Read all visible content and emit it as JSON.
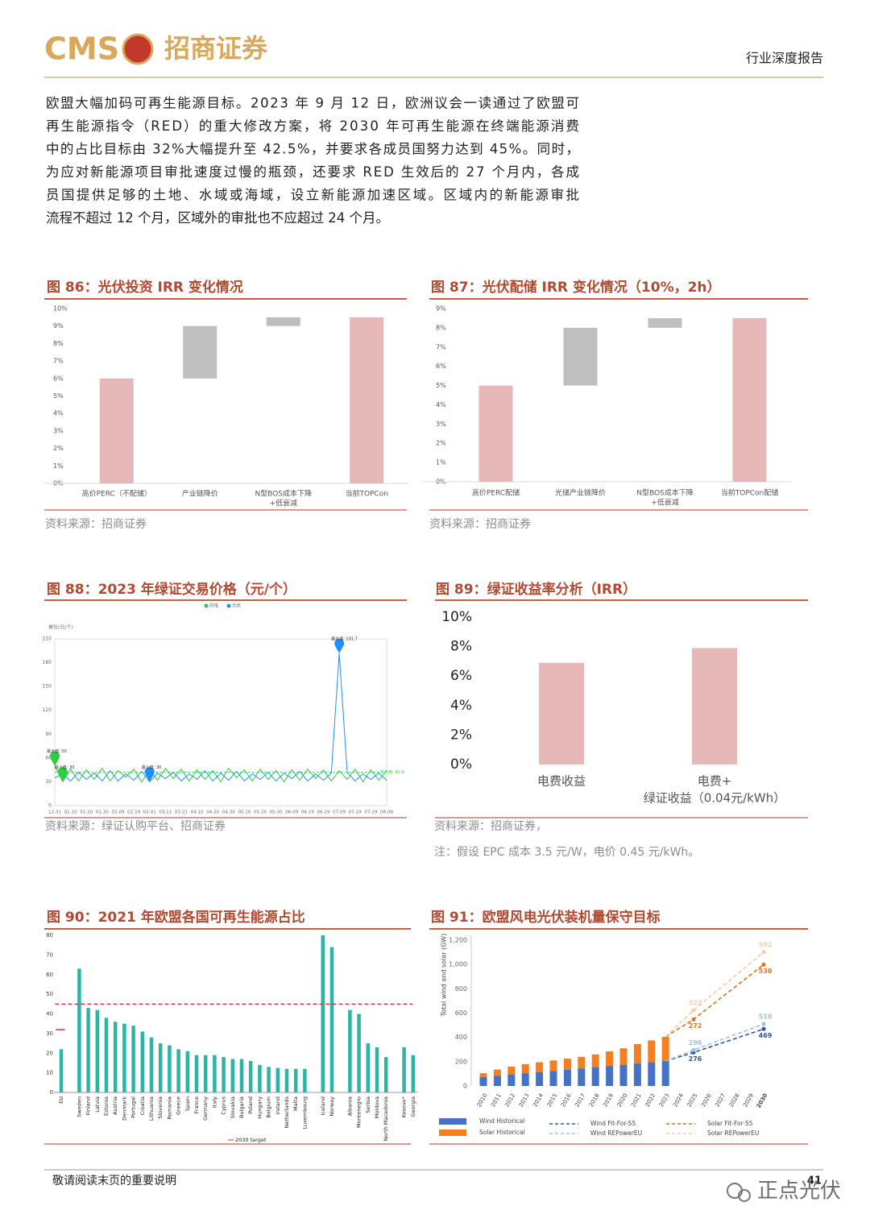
{
  "header": {
    "logo_en": "CMS",
    "logo_cn": "招商证券",
    "report_type": "行业深度报告"
  },
  "paragraph": [
    "欧盟大幅加码可再生能源目标。2023 年 9 月 12 日，欧洲议会一读通过了欧盟可",
    "再生能源指令（RED）的重大修改方案，将 2030 年可再生能源在终端能源消费",
    "中的占比目标由 32%大幅提升至 42.5%，并要求各成员国努力达到 45%。同时，",
    "为应对新能源项目审批速度过慢的瓶颈，还要求 RED 生效后的 27 个月内，各成",
    "员国提供足够的土地、水域或海域，设立新能源加速区域。区域内的新能源审批",
    "流程不超过 12 个月，区域外的审批也不应超过 24 个月。"
  ],
  "chart_data": [
    {
      "type": "waterfall",
      "title": "图 86：光伏投资 IRR 变化情况",
      "source": "资料来源：招商证券",
      "categories": [
        [
          "高价PERC（不配储）"
        ],
        [
          "产业链降价"
        ],
        [
          "N型BOS成本下降",
          "+低衰减"
        ],
        [
          "当前TOPCon"
        ]
      ],
      "values": [
        6.0,
        3.0,
        0.5,
        9.5
      ],
      "colors": [
        "#e6b8b7",
        "#bfbfbf",
        "#bfbfbf",
        "#e6b8b7"
      ],
      "ylim": [
        0,
        10
      ],
      "yticks": [
        {
          "value": 0,
          "label": "0%"
        },
        {
          "value": 1,
          "label": "1%"
        },
        {
          "value": 2,
          "label": "2%"
        },
        {
          "value": 3,
          "label": "3%"
        },
        {
          "value": 4,
          "label": "4%"
        },
        {
          "value": 5,
          "label": "5%"
        },
        {
          "value": 6,
          "label": "6%"
        },
        {
          "value": 7,
          "label": "7%"
        },
        {
          "value": 8,
          "label": "8%"
        },
        {
          "value": 9,
          "label": "9%"
        },
        {
          "value": 10,
          "label": "10%"
        }
      ]
    },
    {
      "type": "waterfall",
      "title": "图 87：光伏配储 IRR 变化情况（10%，2h）",
      "source": "资料来源：招商证券",
      "categories": [
        [
          "高价PERC配储"
        ],
        [
          "光储产业链降价"
        ],
        [
          "N型BOS成本下降",
          "+低衰减"
        ],
        [
          "当前TOPCon配储"
        ]
      ],
      "values": [
        5.0,
        3.0,
        0.5,
        8.5
      ],
      "colors": [
        "#e6b8b7",
        "#bfbfbf",
        "#bfbfbf",
        "#e6b8b7"
      ],
      "ylim": [
        0,
        9
      ],
      "yticks": [
        {
          "value": 0,
          "label": "0%"
        },
        {
          "value": 1,
          "label": "1%"
        },
        {
          "value": 2,
          "label": "2%"
        },
        {
          "value": 3,
          "label": "3%"
        },
        {
          "value": 4,
          "label": "4%"
        },
        {
          "value": 5,
          "label": "5%"
        },
        {
          "value": 6,
          "label": "6%"
        },
        {
          "value": 7,
          "label": "7%"
        },
        {
          "value": 8,
          "label": "8%"
        },
        {
          "value": 9,
          "label": "9%"
        }
      ]
    },
    {
      "type": "line",
      "title": "图 88：2023 年绿证交易价格（元/个）",
      "source": "资料来源：绿证认购平台、招商证券",
      "ylabel": "单位(元/个)",
      "categories": [
        "12-31",
        null,
        "01-10",
        null,
        "01-20",
        null,
        "01-30",
        null,
        "02-09",
        null,
        "02-19",
        null,
        "03-01",
        null,
        "03-11",
        null,
        "03-21",
        null,
        "04-10",
        null,
        "04-20",
        null,
        "04-30",
        null,
        "05-10",
        null,
        "05-20",
        null,
        "05-30",
        null,
        "06-09",
        null,
        "06-19",
        null,
        "06-29",
        null,
        "07-09",
        null,
        "07-19",
        null,
        "07-29",
        null,
        "08-08"
      ],
      "series": [
        {
          "name": "风电",
          "color": "#2ecc40",
          "values": [
            50,
            30,
            46,
            31,
            45,
            33,
            47,
            31,
            44,
            36,
            46,
            30,
            45,
            32,
            47,
            34,
            46,
            31,
            45,
            33,
            44,
            30,
            47,
            35,
            45,
            31,
            46,
            33,
            44,
            30,
            45,
            32,
            46,
            34,
            45,
            31,
            44,
            33,
            46,
            30,
            45,
            32,
            44
          ]
        },
        {
          "name": "光伏",
          "color": "#1e90ff",
          "values": [
            35,
            40,
            31,
            42,
            33,
            41,
            31,
            44,
            31,
            40,
            32,
            43,
            30,
            41,
            34,
            42,
            31,
            40,
            33,
            44,
            31,
            41,
            32,
            43,
            31,
            40,
            33,
            42,
            31,
            41,
            34,
            43,
            31,
            40,
            32,
            41,
            191.7,
            42,
            31,
            40,
            33,
            41,
            32
          ]
        }
      ],
      "average": {
        "value": 41.9,
        "label": "平均值: 41.9"
      },
      "annotations": [
        {
          "value": 50,
          "label": "最大值: 50"
        },
        {
          "value": 30,
          "label": "最小值: 30"
        },
        {
          "value": 30,
          "label": "最小值: 30"
        },
        {
          "value": 191.7,
          "label": "最大值: 191.7"
        }
      ],
      "ylim": [
        0,
        210
      ],
      "yticks": [
        0,
        30,
        60,
        90,
        120,
        150,
        180,
        210
      ]
    },
    {
      "type": "bar",
      "title": "图 89：绿证收益率分析（IRR）",
      "source": "资料来源：招商证券，",
      "note": "注：假设 EPC 成本 3.5 元/W，电价 0.45 元/kWh。",
      "categories": [
        [
          "电费收益"
        ],
        [
          "电费+",
          "绿证收益（0.04元/kWh）"
        ]
      ],
      "values": [
        6.9,
        7.9
      ],
      "color": "#e6b8b7",
      "ylim": [
        0,
        10
      ],
      "yticks": [
        {
          "value": 0,
          "label": "0%"
        },
        {
          "value": 2,
          "label": "2%"
        },
        {
          "value": 4,
          "label": "4%"
        },
        {
          "value": 6,
          "label": "6%"
        },
        {
          "value": 8,
          "label": "8%"
        },
        {
          "value": 10,
          "label": "10%"
        }
      ]
    },
    {
      "type": "bar",
      "title": "图 90：2021 年欧盟各国可再生能源占比",
      "categories": [
        "EU",
        null,
        "Sweden",
        "Finland",
        "Latvia",
        "Estonia",
        "Austria",
        "Denmark",
        "Portugal",
        "Croatia",
        "Lithuania",
        "Slovenia",
        "Romania",
        "Greece",
        "Spain",
        "France",
        "Germany",
        "Italy",
        "Cyprus",
        "Slovakia",
        "Bulgaria",
        "Poland",
        "Hungary",
        "Belgium",
        "Ireland",
        "Netherlands",
        "Malta",
        "Luxembourg",
        null,
        "Iceland",
        "Norway",
        null,
        "Albania",
        "Montenegro",
        "Serbia",
        "Moldova",
        "North Macedonia",
        null,
        "Kosovo*",
        "Georgia"
      ],
      "values": [
        22,
        null,
        63,
        43,
        42,
        38,
        36,
        35,
        34,
        31,
        28,
        25,
        24,
        22,
        21,
        19,
        19,
        19,
        18,
        17,
        17,
        16,
        14,
        13,
        12.5,
        12,
        12,
        12,
        null,
        80,
        74,
        null,
        42,
        40,
        25,
        23,
        18,
        null,
        23,
        19
      ],
      "color": "#2cb5a5",
      "targets": [
        45,
        32
      ],
      "target_label": "2030 target",
      "ylim": [
        0,
        80
      ],
      "yticks": [
        0,
        10,
        20,
        30,
        40,
        50,
        60,
        70,
        80
      ]
    },
    {
      "type": "combo",
      "title": "图 91：欧盟风电光伏装机量保守目标",
      "ylabel": "Total wind and solar (GW)",
      "x": [
        2010,
        2011,
        2012,
        2013,
        2014,
        2015,
        2016,
        2017,
        2018,
        2019,
        2020,
        2021,
        2022,
        2023,
        2024,
        2025,
        2026,
        2027,
        2028,
        2029,
        2030
      ],
      "xlim": [
        2010,
        2030
      ],
      "xticks": [
        2010,
        2011,
        2012,
        2013,
        2014,
        2015,
        2016,
        2017,
        2018,
        2019,
        2020,
        2021,
        2022,
        2023,
        2024,
        2025,
        2026,
        2027,
        2028,
        2029,
        2030
      ],
      "series": [
        {
          "name": "Wind Historical",
          "style": "bar",
          "color": "#4472c4",
          "values": [
            75,
            85,
            95,
            105,
            115,
            125,
            135,
            145,
            155,
            165,
            175,
            185,
            195,
            205,
            null,
            null,
            null,
            null,
            null,
            null,
            null
          ]
        },
        {
          "name": "Solar Historical",
          "style": "bar",
          "color": "#f28020",
          "values": [
            30,
            50,
            65,
            75,
            80,
            85,
            90,
            95,
            105,
            120,
            135,
            160,
            180,
            200,
            null,
            null,
            null,
            null,
            null,
            null,
            null
          ]
        },
        {
          "name": "Wind Fit-For-55",
          "style": "dashed",
          "color": "#2f5597",
          "x": [
            2023,
            2025,
            2030
          ],
          "values": [
            205,
            276,
            469
          ]
        },
        {
          "name": "Wind REPowerEU",
          "style": "dashed",
          "color": "#9dc3e6",
          "x": [
            2023,
            2025,
            2030
          ],
          "values": [
            205,
            296,
            510
          ]
        },
        {
          "name": "Solar Fit-For-55",
          "style": "dashed",
          "color": "#e07020",
          "stacked_on": "Wind Fit-For-55",
          "x": [
            2023,
            2025,
            2030
          ],
          "values": [
            200,
            272,
            530
          ]
        },
        {
          "name": "Solar REPowerEU",
          "style": "dashed",
          "color": "#f8cbad",
          "stacked_on": "Wind REPowerEU",
          "x": [
            2023,
            2025,
            2030
          ],
          "values": [
            200,
            327,
            592
          ]
        }
      ],
      "ylim": [
        0,
        1200
      ],
      "yticks": [
        0,
        200,
        400,
        600,
        800,
        {
          "value": 1000,
          "label": "1,000"
        },
        {
          "value": 1200,
          "label": "1,200"
        }
      ]
    }
  ],
  "footer": {
    "notice": "敬请阅读末页的重要说明",
    "page": "41",
    "watermark": "正点光伏"
  }
}
